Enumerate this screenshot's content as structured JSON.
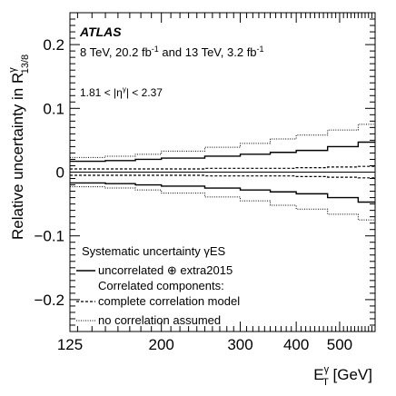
{
  "chart_data": {
    "type": "line",
    "style": "step",
    "xscale": "log",
    "xlim": [
      125,
      600
    ],
    "ylim": [
      -0.25,
      0.25
    ],
    "x_ticks": [
      125,
      200,
      300,
      400,
      500
    ],
    "y_ticks": [
      {
        "value": 0.2,
        "label": "0.2"
      },
      {
        "value": 0.1,
        "label": "0.1"
      },
      {
        "value": 0,
        "label": "0"
      },
      {
        "value": -0.1,
        "label": "−0.1"
      },
      {
        "value": -0.2,
        "label": "−0.2"
      }
    ],
    "bin_edges": [
      125,
      150,
      175,
      200,
      250,
      300,
      350,
      400,
      470,
      550,
      600
    ],
    "experiment_label": "ATLAS",
    "dataset_label": "8 TeV, 20.2 fb⁻¹ and 13 TeV, 3.2 fb⁻¹",
    "region_label": "1.81 < |η^γ| < 2.37",
    "ylabel_main": "Relative uncertainty in R",
    "ylabel_sup": "γ",
    "ylabel_sub": "13/8",
    "xlabel_main": "E",
    "xlabel_sup": "γ",
    "xlabel_sub": "T",
    "xlabel_unit": " [GeV]",
    "legend": {
      "header": "Systematic uncertainty γES",
      "subheader": "Correlated components:",
      "position": "bottom-left"
    },
    "series": [
      {
        "name": "uncorrelated ⊕ extra2015",
        "style": "solid",
        "symmetric": true,
        "values": [
          0.017,
          0.018,
          0.02,
          0.022,
          0.025,
          0.028,
          0.031,
          0.034,
          0.04,
          0.047
        ]
      },
      {
        "name": "complete correlation model",
        "style": "dashed",
        "symmetric": true,
        "values": [
          0.005,
          0.005,
          0.005,
          0.005,
          0.006,
          0.006,
          0.006,
          0.007,
          0.008,
          0.009
        ]
      },
      {
        "name": "no correlation assumed",
        "style": "dotted",
        "symmetric": true,
        "values": [
          0.023,
          0.025,
          0.028,
          0.033,
          0.039,
          0.045,
          0.052,
          0.058,
          0.066,
          0.075
        ]
      }
    ]
  }
}
